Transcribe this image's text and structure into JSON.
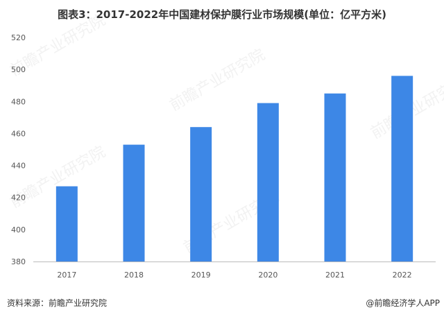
{
  "title": "图表3：2017-2022年中国建材保护膜行业市场规模(单位：亿平方米)",
  "footer": {
    "source": "资料来源：前瞻产业研究院",
    "brand": "@前瞻经济学人APP"
  },
  "watermark": "前瞻产业研究院",
  "chart_data": {
    "type": "bar",
    "categories": [
      "2017",
      "2018",
      "2019",
      "2020",
      "2021",
      "2022"
    ],
    "values": [
      427,
      453,
      464,
      479,
      485,
      496
    ],
    "ylim": [
      380,
      520
    ],
    "yticks": [
      380,
      400,
      420,
      440,
      460,
      480,
      500,
      520
    ],
    "grid": false,
    "legend": "none",
    "bar_color": "#3d87e6"
  }
}
